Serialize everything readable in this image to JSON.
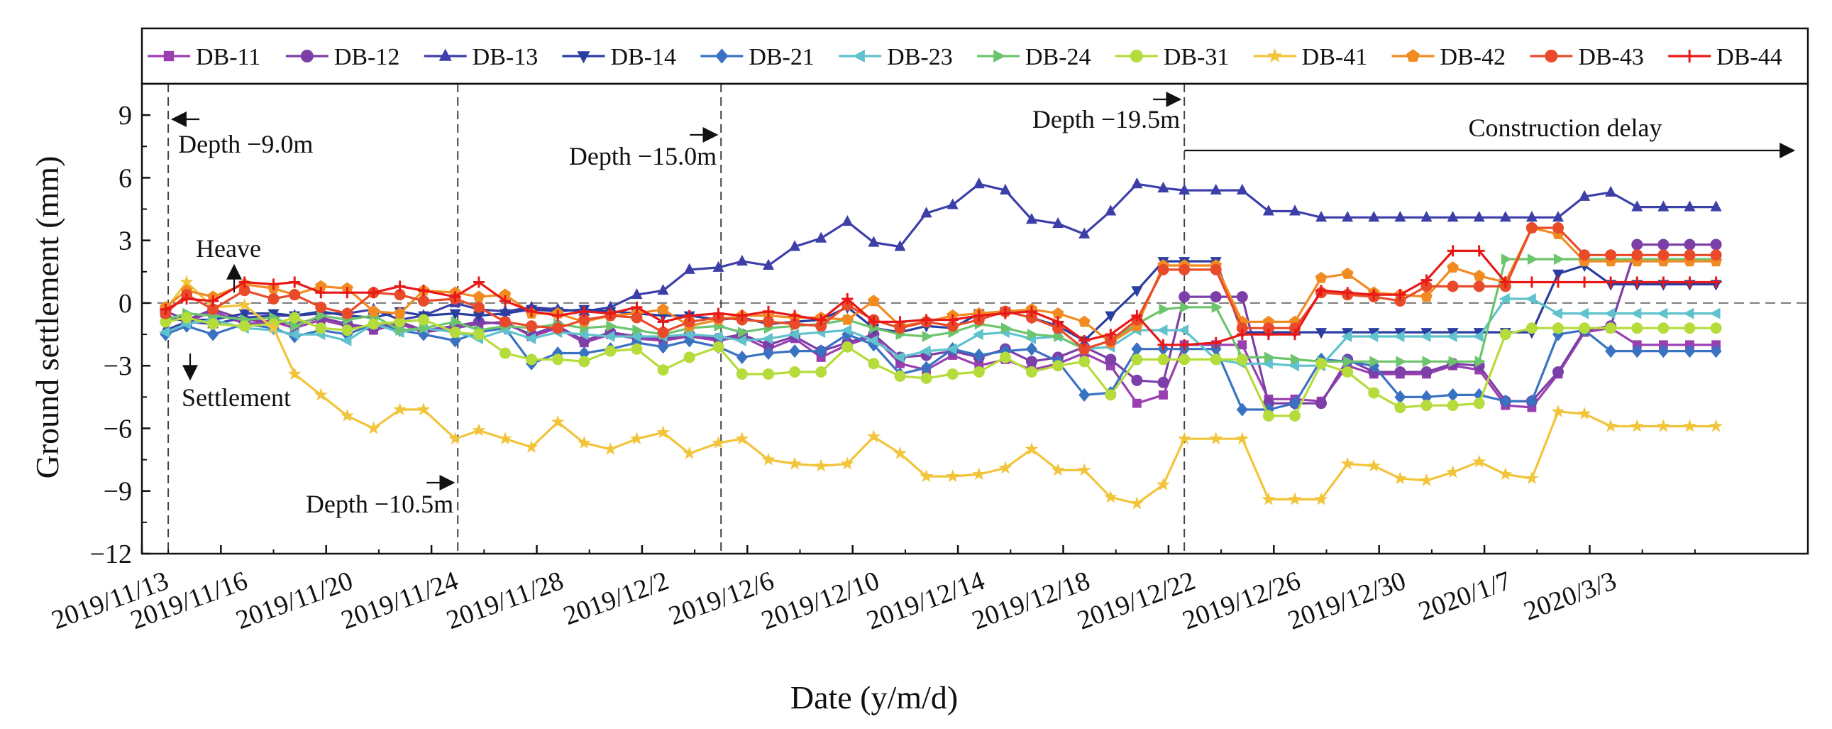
{
  "chart_data": {
    "type": "line",
    "xlabel": "Date (y/m/d)",
    "ylabel": "Ground settlement (mm)",
    "ylim": [
      -12,
      10.5
    ],
    "yticks": [
      -12,
      -9,
      -6,
      -3,
      0,
      3,
      6,
      9
    ],
    "xlim": [
      0,
      60
    ],
    "xtick_labels": [
      {
        "x": 0,
        "label": "2019/11/13"
      },
      {
        "x": 3,
        "label": "2019/11/16"
      },
      {
        "x": 7,
        "label": "2019/11/20"
      },
      {
        "x": 11,
        "label": "2019/11/24"
      },
      {
        "x": 15,
        "label": "2019/11/28"
      },
      {
        "x": 19,
        "label": "2019/12/2"
      },
      {
        "x": 23,
        "label": "2019/12/6"
      },
      {
        "x": 27,
        "label": "2019/12/10"
      },
      {
        "x": 31,
        "label": "2019/12/14"
      },
      {
        "x": 35,
        "label": "2019/12/18"
      },
      {
        "x": 39,
        "label": "2019/12/22"
      },
      {
        "x": 43,
        "label": "2019/12/26"
      },
      {
        "x": 47,
        "label": "2019/12/30"
      },
      {
        "x": 51,
        "label": "2020/1/7"
      },
      {
        "x": 55,
        "label": "2020/3/3"
      }
    ],
    "x": [
      0.9,
      1.7,
      2.7,
      3.9,
      5.0,
      5.8,
      6.8,
      7.8,
      8.8,
      9.8,
      10.7,
      11.9,
      12.8,
      13.8,
      14.8,
      15.8,
      16.8,
      17.8,
      18.8,
      19.8,
      20.8,
      21.9,
      22.8,
      23.8,
      24.8,
      25.8,
      26.8,
      27.8,
      28.8,
      29.8,
      30.8,
      31.8,
      32.8,
      33.8,
      34.8,
      35.8,
      36.8,
      37.8,
      38.8,
      39.6,
      40.8,
      41.8,
      42.8,
      43.8,
      44.8,
      45.8,
      46.8,
      47.8,
      48.8,
      49.8,
      50.8,
      51.8,
      52.8,
      53.8,
      54.8,
      55.8,
      56.8,
      57.8,
      58.8,
      59.8
    ],
    "series": [
      {
        "name": "DB-11",
        "color": "#9a3fb0",
        "marker": "square",
        "values": [
          -0.6,
          -0.9,
          -0.4,
          -1.0,
          -0.9,
          -1.2,
          -0.8,
          -1.1,
          -1.3,
          -1.0,
          -1.4,
          -1.2,
          -1.0,
          -0.9,
          -1.6,
          -1.2,
          -1.9,
          -1.5,
          -1.7,
          -1.8,
          -1.6,
          -1.8,
          -1.6,
          -2.2,
          -1.7,
          -2.6,
          -2.0,
          -1.6,
          -2.9,
          -3.2,
          -2.5,
          -3.0,
          -2.7,
          -3.2,
          -2.9,
          -2.4,
          -3.0,
          -4.8,
          -4.4,
          -2.0,
          -2.0,
          -2.0,
          -4.6,
          -4.6,
          -4.7,
          -3.0,
          -3.4,
          -3.4,
          -3.4,
          -3.0,
          -3.2,
          -4.9,
          -5.0,
          -3.4,
          -1.4,
          -1.2,
          -2.0,
          -2.0,
          -2.0,
          -2.0
        ]
      },
      {
        "name": "DB-12",
        "color": "#7c3fa8",
        "marker": "circle",
        "values": [
          -0.4,
          -0.8,
          -0.3,
          -0.8,
          -0.9,
          -1.0,
          -0.7,
          -1.0,
          -1.2,
          -0.9,
          -1.3,
          -1.1,
          -0.9,
          -1.0,
          -1.5,
          -1.1,
          -1.8,
          -1.4,
          -1.6,
          -1.7,
          -1.5,
          -1.7,
          -1.5,
          -2.0,
          -1.6,
          -2.3,
          -1.9,
          -1.5,
          -2.6,
          -2.5,
          -2.3,
          -2.6,
          -2.2,
          -2.8,
          -2.6,
          -2.1,
          -2.7,
          -3.7,
          -3.8,
          0.3,
          0.3,
          0.3,
          -4.8,
          -4.8,
          -4.8,
          -2.7,
          -3.3,
          -3.3,
          -3.3,
          -2.9,
          -3.0,
          -4.7,
          -4.7,
          -3.3,
          -1.3,
          -1.1,
          2.8,
          2.8,
          2.8,
          2.8
        ]
      },
      {
        "name": "DB-13",
        "color": "#3d3fa8",
        "marker": "triangle-up",
        "values": [
          -1.3,
          -0.9,
          -1.0,
          -0.7,
          -0.6,
          -0.6,
          -0.5,
          -0.5,
          -0.3,
          -0.8,
          -0.6,
          0.0,
          -0.3,
          -0.4,
          -0.2,
          -0.3,
          -0.4,
          -0.2,
          0.4,
          0.6,
          1.6,
          1.7,
          2.0,
          1.8,
          2.7,
          3.1,
          3.9,
          2.9,
          2.7,
          4.3,
          4.7,
          5.7,
          5.4,
          4.0,
          3.8,
          3.3,
          4.4,
          5.7,
          5.5,
          5.4,
          5.4,
          5.4,
          4.4,
          4.4,
          4.1,
          4.1,
          4.1,
          4.1,
          4.1,
          4.1,
          4.1,
          4.1,
          4.1,
          4.1,
          5.1,
          5.3,
          4.6,
          4.6,
          4.6,
          4.6
        ]
      },
      {
        "name": "DB-14",
        "color": "#2a3da0",
        "marker": "triangle-down",
        "values": [
          -0.8,
          -0.8,
          -0.8,
          -0.5,
          -0.5,
          -0.6,
          -0.4,
          -0.6,
          -0.7,
          -0.4,
          -0.6,
          -0.5,
          -0.6,
          -0.5,
          -0.3,
          -0.4,
          -0.3,
          -0.4,
          -0.5,
          -0.6,
          -0.6,
          -0.8,
          -0.7,
          -1.0,
          -0.9,
          -0.8,
          -0.2,
          -1.2,
          -1.4,
          -1.1,
          -1.2,
          -0.5,
          -0.4,
          -0.7,
          -1.1,
          -1.8,
          -0.6,
          0.6,
          2.0,
          2.0,
          2.0,
          -1.4,
          -1.4,
          -1.4,
          -1.4,
          -1.4,
          -1.4,
          -1.4,
          -1.4,
          -1.4,
          -1.4,
          -1.4,
          -1.4,
          1.4,
          1.8,
          0.9,
          0.9,
          0.9,
          0.9,
          0.9
        ]
      },
      {
        "name": "DB-21",
        "color": "#3a72c2",
        "marker": "diamond",
        "values": [
          -1.5,
          -1.1,
          -1.5,
          -1.0,
          -1.2,
          -1.6,
          -1.3,
          -1.5,
          -1.0,
          -1.3,
          -1.5,
          -1.8,
          -1.4,
          -1.2,
          -2.9,
          -2.4,
          -2.4,
          -2.2,
          -1.9,
          -2.1,
          -1.8,
          -2.1,
          -2.6,
          -2.4,
          -2.3,
          -2.3,
          -1.5,
          -2.0,
          -3.4,
          -3.1,
          -2.2,
          -2.5,
          -2.3,
          -2.2,
          -2.8,
          -4.4,
          -4.3,
          -2.2,
          -2.2,
          -2.2,
          -2.2,
          -5.1,
          -5.1,
          -4.8,
          -2.7,
          -2.8,
          -3.0,
          -4.5,
          -4.5,
          -4.4,
          -4.4,
          -4.7,
          -4.7,
          -1.5,
          -1.3,
          -2.3,
          -2.3,
          -2.3,
          -2.3,
          -2.3
        ]
      },
      {
        "name": "DB-23",
        "color": "#5fc2cc",
        "marker": "triangle-left",
        "values": [
          -1.4,
          -1.0,
          -0.8,
          -1.2,
          -1.3,
          -1.5,
          -1.5,
          -1.8,
          -1.0,
          -1.4,
          -1.2,
          -1.4,
          -1.7,
          -1.3,
          -1.7,
          -1.4,
          -1.5,
          -1.6,
          -1.6,
          -1.6,
          -1.5,
          -1.6,
          -1.8,
          -1.7,
          -1.5,
          -1.4,
          -1.3,
          -1.8,
          -2.6,
          -2.3,
          -2.2,
          -1.5,
          -1.4,
          -1.7,
          -1.6,
          -2.2,
          -2.1,
          -1.3,
          -1.3,
          -1.3,
          -2.7,
          -2.9,
          -2.9,
          -3.0,
          -3.0,
          -1.6,
          -1.6,
          -1.6,
          -1.6,
          -1.6,
          -1.6,
          0.2,
          0.2,
          -0.5,
          -0.5,
          -0.5,
          -0.5,
          -0.5,
          -0.5,
          -0.5
        ]
      },
      {
        "name": "DB-24",
        "color": "#6cc46c",
        "marker": "triangle-right",
        "values": [
          -0.8,
          -0.5,
          -0.6,
          -0.8,
          -0.7,
          -1.1,
          -0.6,
          -0.8,
          -0.6,
          -1.3,
          -1.2,
          -0.9,
          -1.3,
          -1.1,
          -1.2,
          -1.0,
          -1.2,
          -1.1,
          -1.3,
          -1.5,
          -1.2,
          -1.1,
          -1.4,
          -1.2,
          -1.1,
          -1.0,
          -0.8,
          -1.2,
          -1.5,
          -1.6,
          -1.4,
          -1.0,
          -1.2,
          -1.5,
          -1.6,
          -2.2,
          -1.8,
          -1.0,
          -0.3,
          -0.2,
          -0.2,
          -2.6,
          -2.6,
          -2.7,
          -2.8,
          -2.8,
          -2.8,
          -2.8,
          -2.8,
          -2.8,
          -2.8,
          2.1,
          2.1,
          2.1,
          2.1,
          2.1,
          2.1,
          2.1,
          2.1,
          2.1
        ]
      },
      {
        "name": "DB-31",
        "color": "#b5dc3a",
        "marker": "circle",
        "values": [
          -0.9,
          -0.7,
          -1.0,
          -1.1,
          -1.0,
          -0.7,
          -1.2,
          -1.3,
          -1.0,
          -0.9,
          -0.8,
          -1.4,
          -1.5,
          -2.4,
          -2.7,
          -2.7,
          -2.8,
          -2.3,
          -2.2,
          -3.2,
          -2.6,
          -2.1,
          -3.4,
          -3.4,
          -3.3,
          -3.3,
          -2.1,
          -2.9,
          -3.5,
          -3.6,
          -3.4,
          -3.3,
          -2.6,
          -3.3,
          -3.0,
          -2.8,
          -4.4,
          -2.7,
          -2.7,
          -2.7,
          -2.7,
          -2.7,
          -5.4,
          -5.4,
          -2.9,
          -3.3,
          -4.3,
          -5.0,
          -4.9,
          -4.9,
          -4.8,
          -1.5,
          -1.2,
          -1.2,
          -1.2,
          -1.2,
          -1.2,
          -1.2,
          -1.2,
          -1.2
        ]
      },
      {
        "name": "DB-41",
        "color": "#f2c43a",
        "marker": "star",
        "values": [
          -0.3,
          1.0,
          -0.2,
          -0.1,
          -1.2,
          -3.4,
          -4.4,
          -5.4,
          -6.0,
          -5.1,
          -5.1,
          -6.5,
          -6.1,
          -6.5,
          -6.9,
          -5.7,
          -6.7,
          -7.0,
          -6.5,
          -6.2,
          -7.2,
          -6.7,
          -6.5,
          -7.5,
          -7.7,
          -7.8,
          -7.7,
          -6.4,
          -7.2,
          -8.3,
          -8.3,
          -8.2,
          -7.9,
          -7.0,
          -8.0,
          -8.0,
          -9.3,
          -9.6,
          -8.7,
          -6.5,
          -6.5,
          -6.5,
          -9.4,
          -9.4,
          -9.4,
          -7.7,
          -7.8,
          -8.4,
          -8.5,
          -8.1,
          -7.6,
          -8.2,
          -8.4,
          -5.2,
          -5.3,
          -5.9,
          -5.9,
          -5.9,
          -5.9,
          -5.9
        ]
      },
      {
        "name": "DB-42",
        "color": "#f28a22",
        "marker": "pentagon",
        "values": [
          -0.2,
          0.6,
          0.3,
          0.9,
          0.7,
          0.4,
          0.8,
          0.7,
          -0.4,
          -0.5,
          0.6,
          0.5,
          0.3,
          0.4,
          -0.5,
          -0.5,
          -0.9,
          -0.6,
          -0.5,
          -0.3,
          -1.1,
          -0.8,
          -0.6,
          -0.6,
          -0.7,
          -0.7,
          -0.8,
          0.1,
          -1.1,
          -0.9,
          -0.6,
          -0.5,
          -0.4,
          -0.3,
          -0.5,
          -0.9,
          -1.9,
          -1.1,
          1.8,
          1.8,
          1.8,
          -0.9,
          -0.9,
          -0.9,
          1.2,
          1.4,
          0.5,
          0.4,
          0.3,
          1.7,
          1.3,
          1.0,
          3.6,
          3.3,
          2.0,
          2.0,
          2.0,
          2.0,
          2.0,
          2.0
        ]
      },
      {
        "name": "DB-43",
        "color": "#e84a2a",
        "marker": "circle",
        "values": [
          -0.5,
          0.4,
          -0.3,
          0.6,
          0.2,
          0.4,
          -0.2,
          -0.5,
          0.5,
          0.4,
          0.1,
          0.2,
          -0.2,
          -0.9,
          -1.1,
          -1.2,
          -0.8,
          -0.6,
          -0.7,
          -1.4,
          -0.9,
          -0.7,
          -0.8,
          -0.9,
          -1.0,
          -1.1,
          -0.1,
          -0.8,
          -1.2,
          -0.9,
          -1.1,
          -0.8,
          -0.4,
          -0.7,
          -1.2,
          -2.2,
          -1.8,
          -0.8,
          1.6,
          1.6,
          1.6,
          -1.2,
          -1.2,
          -1.2,
          0.5,
          0.4,
          0.3,
          0.1,
          0.8,
          0.8,
          0.8,
          0.8,
          3.6,
          3.6,
          2.3,
          2.3,
          2.3,
          2.3,
          2.3,
          2.3
        ]
      },
      {
        "name": "DB-44",
        "color": "#e81818",
        "marker": "plus",
        "values": [
          -0.3,
          0.2,
          0.1,
          1.0,
          0.9,
          1.0,
          0.5,
          0.5,
          0.5,
          0.8,
          0.6,
          0.3,
          1.0,
          0.1,
          -0.4,
          -0.6,
          -0.4,
          -0.5,
          -0.2,
          -0.9,
          -0.6,
          -0.5,
          -0.6,
          -0.4,
          -0.6,
          -0.8,
          0.2,
          -0.9,
          -0.9,
          -0.8,
          -0.8,
          -0.6,
          -0.5,
          -0.4,
          -0.9,
          -1.8,
          -1.5,
          -0.6,
          -2.0,
          -2.0,
          -1.9,
          -1.5,
          -1.5,
          -1.5,
          0.6,
          0.5,
          0.4,
          0.4,
          1.1,
          2.5,
          2.5,
          1.0,
          1.0,
          1.0,
          1.0,
          1.0,
          1.0,
          1.0,
          1.0,
          1.0
        ]
      }
    ],
    "vertical_lines_x": [
      1.0,
      12.0,
      22.0,
      39.6
    ],
    "annotations": {
      "depth_9": "Depth −9.0m",
      "depth_10_5": "Depth −10.5m",
      "depth_15": "Depth −15.0m",
      "depth_19_5": "Depth −19.5m",
      "construction_delay": "Construction delay",
      "heave": "Heave",
      "settlement": "Settlement"
    },
    "legend_position": "top"
  }
}
